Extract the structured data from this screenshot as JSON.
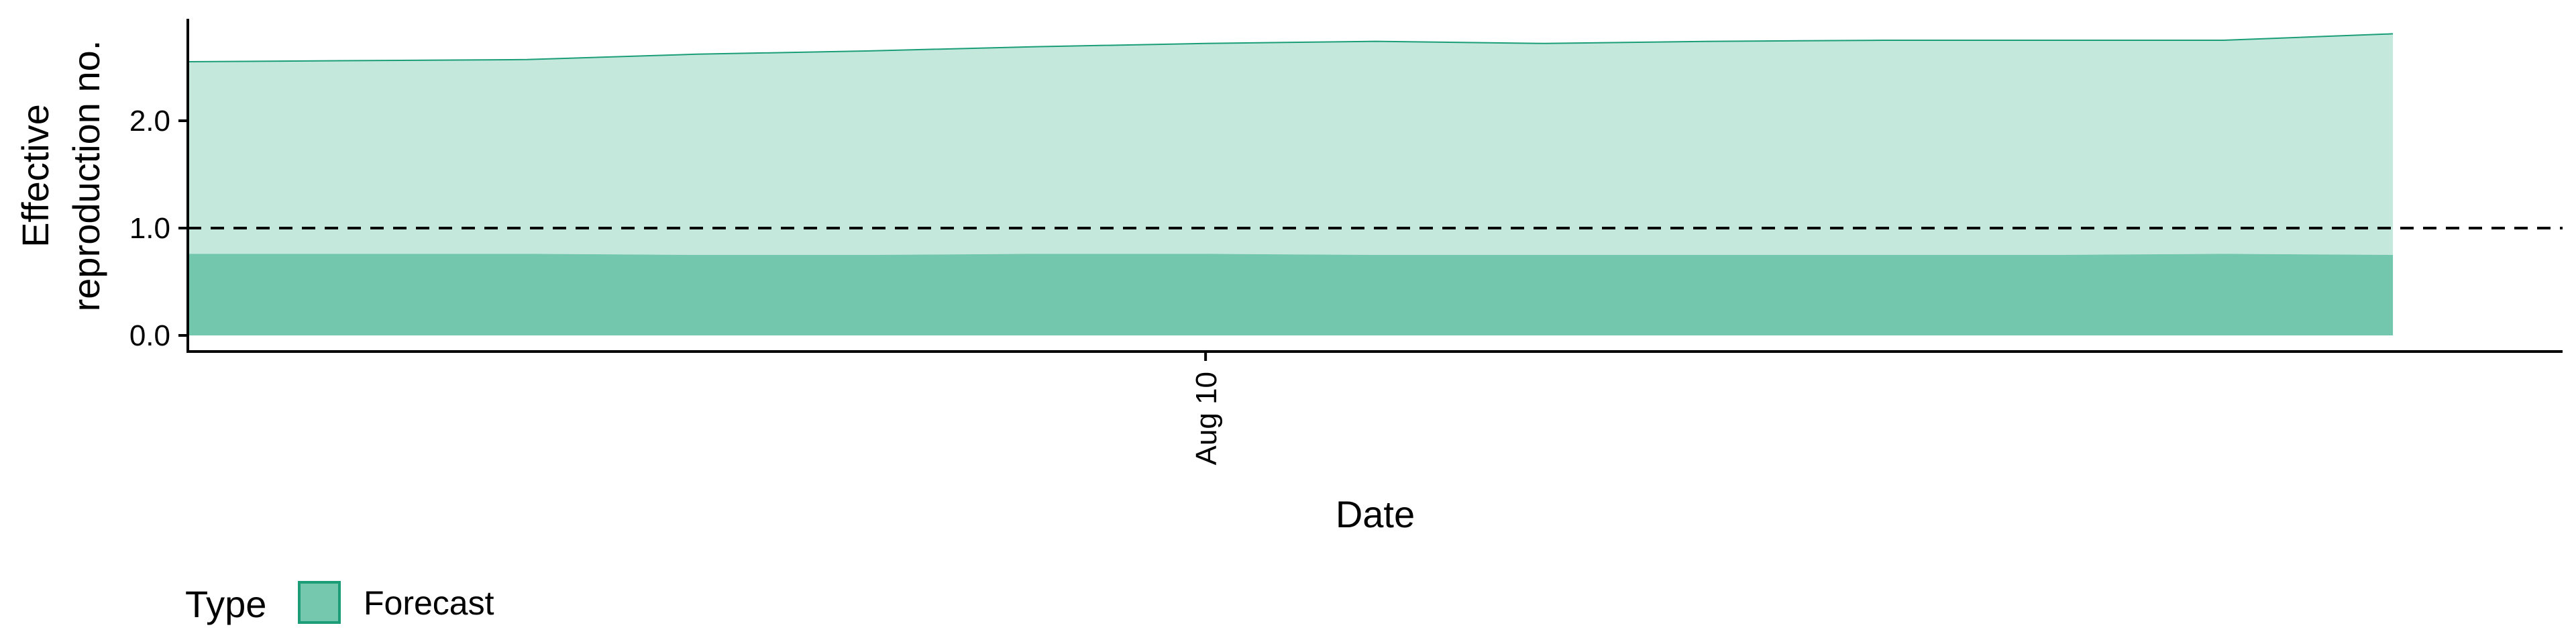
{
  "chart_data": {
    "type": "area",
    "xlabel": "Date",
    "ylabel_lines": [
      "Effective",
      "reproduction no."
    ],
    "x_tick_labels": [
      {
        "date": "2020-08-10",
        "label": "Aug 10"
      }
    ],
    "y_ticks": [
      {
        "value": 0.0,
        "label": "0.0"
      },
      {
        "value": 1.0,
        "label": "1.0"
      },
      {
        "value": 2.0,
        "label": "2.0"
      }
    ],
    "ylim": [
      -0.15,
      2.95
    ],
    "xlim": [
      "2020-08-04",
      "2020-08-18"
    ],
    "reference_line": {
      "y": 1.0,
      "style": "dashed"
    },
    "legend": {
      "title": "Type",
      "placement": "bottom-left",
      "entries": [
        {
          "label": "Forecast",
          "color": "#66C2A5"
        }
      ]
    },
    "series": [
      {
        "name": "Forecast",
        "color": "#66C2A5",
        "x": [
          "2020-08-04",
          "2020-08-05",
          "2020-08-06",
          "2020-08-07",
          "2020-08-08",
          "2020-08-09",
          "2020-08-10",
          "2020-08-11",
          "2020-08-12",
          "2020-08-13",
          "2020-08-14",
          "2020-08-15",
          "2020-08-16",
          "2020-08-17"
        ],
        "inner_band": {
          "lower": [
            0.0,
            0.0,
            0.0,
            0.0,
            0.0,
            0.0,
            0.0,
            0.0,
            0.0,
            0.0,
            0.0,
            0.0,
            0.0,
            0.0
          ],
          "upper": [
            0.76,
            0.76,
            0.76,
            0.75,
            0.75,
            0.76,
            0.76,
            0.75,
            0.75,
            0.75,
            0.75,
            0.75,
            0.76,
            0.75
          ]
        },
        "outer_band": {
          "lower": [
            0.76,
            0.76,
            0.76,
            0.75,
            0.75,
            0.76,
            0.76,
            0.75,
            0.75,
            0.75,
            0.75,
            0.75,
            0.76,
            0.75
          ],
          "upper": [
            2.55,
            2.56,
            2.57,
            2.62,
            2.65,
            2.69,
            2.72,
            2.74,
            2.72,
            2.74,
            2.75,
            2.75,
            2.75,
            2.81
          ]
        }
      }
    ]
  }
}
